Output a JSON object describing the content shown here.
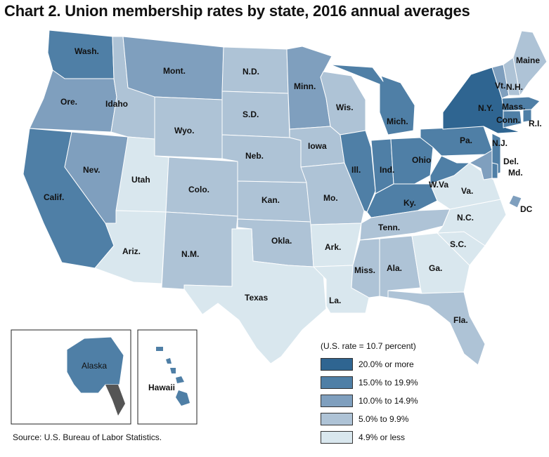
{
  "title": "Chart 2. Union membership rates by state, 2016 annual averages",
  "source": "Source: U.S. Bureau of Labor Statistics.",
  "legend": {
    "heading": "(U.S. rate = 10.7 percent)",
    "items": [
      {
        "label": "20.0% or more",
        "color": "#2f6591"
      },
      {
        "label": "15.0% to 19.9%",
        "color": "#4f7fa6"
      },
      {
        "label": "10.0% to 14.9%",
        "color": "#7f9fbe"
      },
      {
        "label": "5.0% to 9.9%",
        "color": "#aec3d6"
      },
      {
        "label": "4.9% or less",
        "color": "#d9e7ee"
      }
    ]
  },
  "colors": {
    "c1": "#2f6591",
    "c2": "#4f7fa6",
    "c3": "#7f9fbe",
    "c4": "#aec3d6",
    "c5": "#d9e7ee",
    "border": "#ffffff",
    "inset_border": "#222222"
  },
  "states": {
    "wash": "Wash.",
    "ore": "Ore.",
    "calif": "Calif.",
    "nev": "Nev.",
    "idaho": "Idaho",
    "mont": "Mont.",
    "wyo": "Wyo.",
    "utah": "Utah",
    "ariz": "Ariz.",
    "colo": "Colo.",
    "nm": "N.M.",
    "nd": "N.D.",
    "sd": "S.D.",
    "neb": "Neb.",
    "kan": "Kan.",
    "okla": "Okla.",
    "texas": "Texas",
    "minn": "Minn.",
    "iowa": "Iowa",
    "mo": "Mo.",
    "ark": "Ark.",
    "la": "La.",
    "wis": "Wis.",
    "ill": "Ill.",
    "mich": "Mich.",
    "ind": "Ind.",
    "ohio": "Ohio",
    "ky": "Ky.",
    "tenn": "Tenn.",
    "miss": "Miss.",
    "ala": "Ala.",
    "ga": "Ga.",
    "fla": "Fla.",
    "sc": "S.C.",
    "nc": "N.C.",
    "va": "Va.",
    "wva": "W.Va",
    "pa": "Pa.",
    "ny": "N.Y.",
    "nj": "N.J.",
    "del": "Del.",
    "md": "Md.",
    "dc": "DC",
    "conn": "Conn.",
    "ri": "R.I.",
    "mass": "Mass.",
    "vt": "Vt.",
    "nh": "N.H.",
    "maine": "Maine",
    "alaska": "Alaska",
    "hawaii": "Hawaii"
  }
}
